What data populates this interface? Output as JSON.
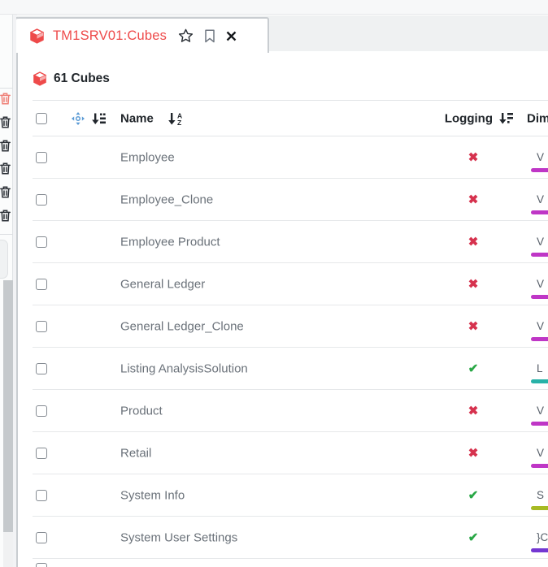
{
  "tab": {
    "title": "TM1SRV01:Cubes",
    "icons": {
      "cube": "cube-icon",
      "favorite": "star-icon",
      "bookmark": "bookmark-icon",
      "close": "close-icon"
    }
  },
  "header": {
    "count_label": "61 Cubes"
  },
  "table": {
    "columns": {
      "name": "Name",
      "logging": "Logging",
      "dimensions": "Dimensions"
    },
    "rows": [
      {
        "name": "Employee",
        "logging": false,
        "dim_text": "V",
        "dim_color": "#bf36c6"
      },
      {
        "name": "Employee_Clone",
        "logging": false,
        "dim_text": "V",
        "dim_color": "#bf36c6"
      },
      {
        "name": "Employee Product",
        "logging": false,
        "dim_text": "V",
        "dim_color": "#bf36c6"
      },
      {
        "name": "General Ledger",
        "logging": false,
        "dim_text": "V",
        "dim_color": "#bf36c6"
      },
      {
        "name": "General Ledger_Clone",
        "logging": false,
        "dim_text": "V",
        "dim_color": "#bf36c6"
      },
      {
        "name": "Listing AnalysisSolution",
        "logging": true,
        "dim_text": "L",
        "dim_color": "#29b2a8"
      },
      {
        "name": "Product",
        "logging": false,
        "dim_text": "V",
        "dim_color": "#bf36c6"
      },
      {
        "name": "Retail",
        "logging": false,
        "dim_text": "V",
        "dim_color": "#bf36c6"
      },
      {
        "name": "System Info",
        "logging": true,
        "dim_text": "S",
        "dim_color": "#a7ba24"
      },
      {
        "name": "System User Settings",
        "logging": true,
        "dim_text": "}C",
        "dim_color": "#7437d2"
      }
    ]
  },
  "glyphs": {
    "check": "✔",
    "cross": "✖"
  },
  "colors": {
    "accent_red": "#ee4a4a",
    "logging_on": "#28a745",
    "logging_off": "#d6324e",
    "move_icon_blue": "#5b9bd5"
  },
  "sidebar": {
    "delete_icons": [
      "highlighted",
      "normal",
      "normal",
      "normal",
      "normal",
      "normal"
    ]
  }
}
